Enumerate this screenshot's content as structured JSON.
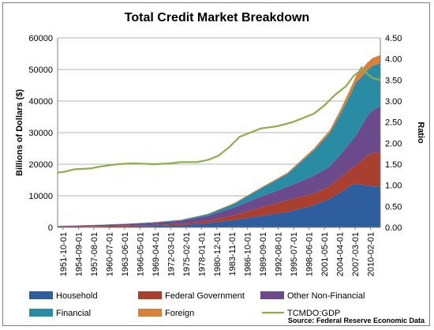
{
  "chart_data": {
    "type": "area",
    "title": "Total Credit Market Breakdown",
    "ylabel": "Billions of Dollars ($)",
    "y2label": "Ratio",
    "ylim": [
      0,
      60000
    ],
    "y2lim": [
      0,
      4.5
    ],
    "yticks": [
      "0",
      "10000",
      "20000",
      "30000",
      "40000",
      "50000",
      "60000"
    ],
    "y2ticks": [
      "0.00",
      "0.50",
      "1.00",
      "1.50",
      "2.00",
      "2.50",
      "3.00",
      "3.50",
      "4.00",
      "4.50"
    ],
    "x_tick_labels": [
      "1951-10-01",
      "1954-09-01",
      "1957-08-01",
      "1960-07-01",
      "1963-06-01",
      "1966-05-01",
      "1969-04-01",
      "1972-03-01",
      "1975-02-01",
      "1978-01-01",
      "1980-12-01",
      "1983-11-01",
      "1986-10-01",
      "1989-09-01",
      "1992-08-01",
      "1995-07-01",
      "1998-06-01",
      "2001-05-01",
      "2004-04-01",
      "2007-03-01",
      "2010-02-01"
    ],
    "x_years": [
      1951.75,
      1955,
      1960,
      1965,
      1970,
      1975,
      1980,
      1985,
      1990,
      1995,
      2000,
      2003,
      2005,
      2007,
      2008,
      2009,
      2010,
      2011,
      2012.5
    ],
    "series": [
      {
        "name": "Household",
        "color": "#2e5e9e",
        "values": [
          80,
          120,
          220,
          330,
          480,
          700,
          1350,
          2300,
          3600,
          4800,
          7000,
          9000,
          11000,
          13300,
          13800,
          13500,
          13200,
          13000,
          12800
        ]
      },
      {
        "name": "Federal Government",
        "color": "#a83f2f",
        "values": [
          230,
          230,
          240,
          270,
          300,
          450,
          750,
          1600,
          2700,
          3800,
          3700,
          4000,
          4800,
          5300,
          6000,
          7700,
          9400,
          10500,
          11000
        ]
      },
      {
        "name": "Other Non-Financial",
        "color": "#6b4a8c",
        "values": [
          150,
          200,
          320,
          480,
          700,
          950,
          1500,
          2400,
          3400,
          4200,
          5600,
          6300,
          7300,
          8600,
          9500,
          11000,
          12500,
          13500,
          14500
        ]
      },
      {
        "name": "Financial",
        "color": "#2a8ca4",
        "values": [
          20,
          30,
          60,
          100,
          150,
          260,
          550,
          1200,
          2600,
          4100,
          8100,
          10600,
          12900,
          15400,
          16800,
          15500,
          14600,
          14100,
          13700
        ]
      },
      {
        "name": "Foreign",
        "color": "#d9813a",
        "values": [
          10,
          10,
          20,
          30,
          40,
          60,
          120,
          220,
          300,
          400,
          600,
          900,
          1300,
          1900,
          2100,
          2300,
          2400,
          2500,
          2600
        ]
      }
    ],
    "line_series": {
      "name": "TCMDO:GDP",
      "color": "#8bb04a",
      "x_years": [
        1951.75,
        1953,
        1955,
        1958,
        1960,
        1963,
        1966,
        1970,
        1973,
        1975,
        1978,
        1980,
        1982,
        1984,
        1986,
        1988,
        1990,
        1993,
        1996,
        1998,
        2000,
        2002,
        2004,
        2006,
        2007.5,
        2008.5,
        2009,
        2010,
        2011,
        2012.5
      ],
      "values": [
        1.3,
        1.32,
        1.38,
        1.4,
        1.45,
        1.5,
        1.52,
        1.5,
        1.52,
        1.55,
        1.55,
        1.6,
        1.7,
        1.9,
        2.15,
        2.25,
        2.35,
        2.4,
        2.5,
        2.6,
        2.7,
        2.9,
        3.15,
        3.35,
        3.6,
        3.7,
        3.8,
        3.65,
        3.55,
        3.5
      ]
    },
    "legend_position": "bottom",
    "source": "Source: Federal Reserve Economic Data"
  }
}
